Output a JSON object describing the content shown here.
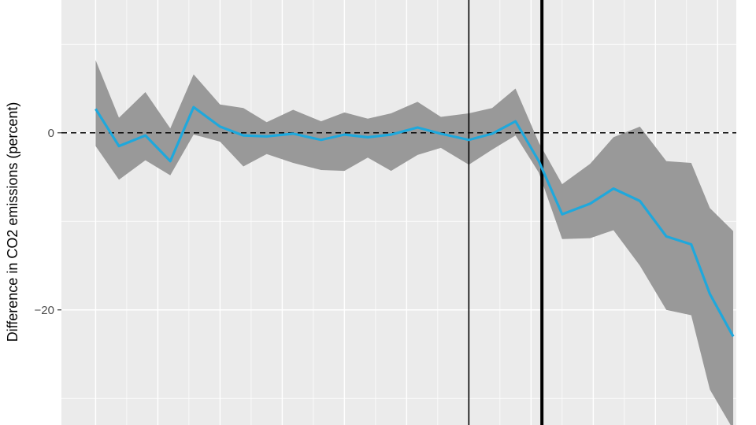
{
  "chart_data": {
    "type": "line",
    "title": "",
    "xlabel": "",
    "ylabel": "Difference in CO2 emissions (percent)",
    "ylim": [
      -33,
      15
    ],
    "xlim": [
      -2.2,
      41.2
    ],
    "y_ticks": [
      -20,
      0
    ],
    "x_gridlines_major": [
      0,
      4,
      8,
      12,
      16,
      20,
      24,
      28,
      32,
      36,
      40
    ],
    "reference_line_y": 0,
    "vertical_lines": [
      {
        "x": 24,
        "style": "thin"
      },
      {
        "x": 28.7,
        "style": "thick"
      }
    ],
    "grid": true,
    "colors": {
      "panel": "#ebebeb",
      "grid": "#ffffff",
      "line": "#1fa8dc",
      "band": "#999999"
    },
    "series": [
      {
        "x": [
          0,
          1.5,
          3.2,
          4.8,
          6.3,
          8,
          9.5,
          11,
          12.7,
          14.5,
          16,
          17.5,
          19,
          20.7,
          22.2,
          24,
          25.5,
          27,
          28.5,
          30,
          31.8,
          33.3,
          35,
          36.7,
          38.3,
          39.5,
          41
        ],
        "values": [
          2.7,
          -1.5,
          -0.3,
          -3.2,
          2.9,
          0.7,
          -0.3,
          -0.4,
          -0.1,
          -0.8,
          -0.2,
          -0.5,
          -0.2,
          0.6,
          -0.1,
          -0.8,
          -0.1,
          1.3,
          -3.2,
          -9.2,
          -8.0,
          -6.3,
          -7.7,
          -11.7,
          -12.6,
          -18.2,
          -23.0
        ],
        "lower": [
          -1.5,
          -5.3,
          -3.1,
          -4.8,
          -0.2,
          -1.0,
          -3.8,
          -2.4,
          -3.4,
          -4.2,
          -4.3,
          -2.8,
          -4.3,
          -2.5,
          -1.7,
          -3.6,
          -1.9,
          -0.3,
          -4.5,
          -12.0,
          -11.9,
          -11.0,
          -15.0,
          -20.0,
          -20.6,
          -29.0,
          -33.5
        ],
        "upper": [
          8.2,
          1.7,
          4.6,
          0.5,
          6.6,
          3.2,
          2.8,
          1.2,
          2.6,
          1.3,
          2.3,
          1.6,
          2.2,
          3.5,
          1.8,
          2.2,
          2.8,
          5.0,
          -1.1,
          -5.8,
          -3.5,
          -0.5,
          0.7,
          -3.2,
          -3.4,
          -8.5,
          -11.1
        ]
      }
    ]
  }
}
